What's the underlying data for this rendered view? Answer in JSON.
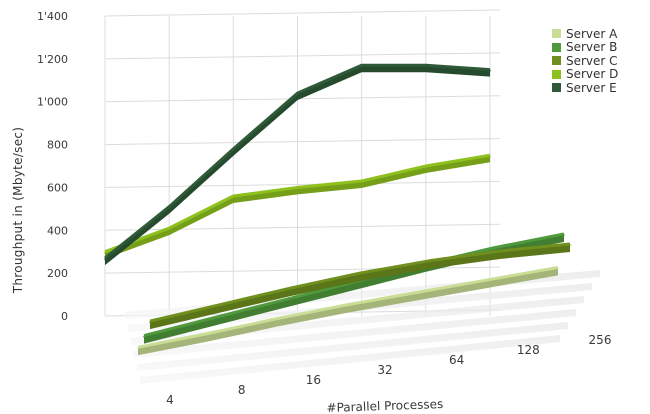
{
  "chart_data": {
    "type": "line",
    "title": "",
    "xlabel": "#Parallel Processes",
    "ylabel": "Throughput in (Mbyte/sec)",
    "categories": [
      "4",
      "8",
      "16",
      "32",
      "64",
      "128",
      "256"
    ],
    "y_ticks": [
      "0",
      "200",
      "400",
      "600",
      "800",
      "1'000",
      "1'200",
      "1'400"
    ],
    "ylim": [
      0,
      1400
    ],
    "grid": true,
    "legend_position": "top-right",
    "series": [
      {
        "name": "Server A",
        "color": "#c9dd95",
        "values": [
          20,
          60,
          110,
          150,
          180,
          210,
          240
        ]
      },
      {
        "name": "Server B",
        "color": "#4f9a3c",
        "values": [
          40,
          110,
          180,
          250,
          320,
          380,
          420
        ]
      },
      {
        "name": "Server C",
        "color": "#6f8f1f",
        "values": [
          80,
          140,
          200,
          250,
          280,
          290,
          280
        ]
      },
      {
        "name": "Server D",
        "color": "#8fc11e",
        "values": [
          300,
          410,
          560,
          600,
          630,
          700,
          750
        ]
      },
      {
        "name": "Server E",
        "color": "#2e5a38",
        "values": [
          270,
          510,
          780,
          1040,
          1170,
          1170,
          1150
        ]
      }
    ]
  }
}
